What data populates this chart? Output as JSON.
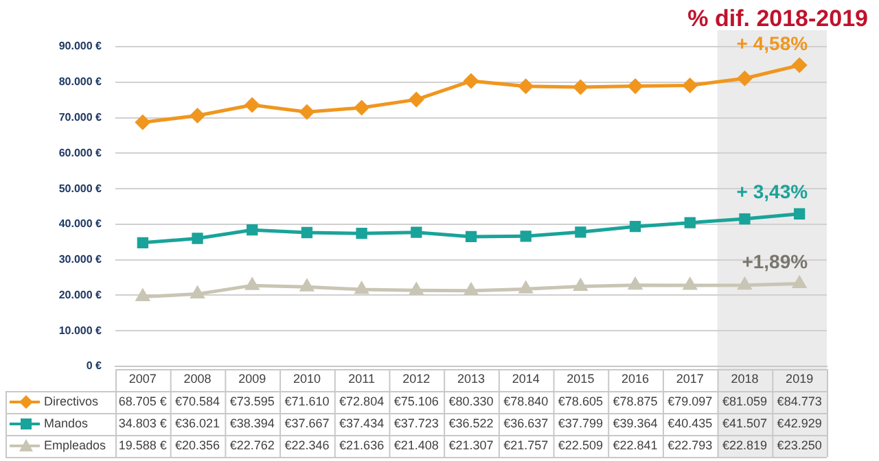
{
  "chart_data": {
    "type": "line",
    "title": "% dif. 2018-2019",
    "categories": [
      "2007",
      "2008",
      "2009",
      "2010",
      "2011",
      "2012",
      "2013",
      "2014",
      "2015",
      "2016",
      "2017",
      "2018",
      "2019"
    ],
    "series": [
      {
        "name": "Directivos",
        "color": "#f0961e",
        "marker": "diamond",
        "values": [
          68705,
          70584,
          73595,
          71610,
          72804,
          75106,
          80330,
          78840,
          78605,
          78875,
          79097,
          81059,
          84773
        ],
        "value_labels": [
          "68.705 €",
          "€70.584",
          "€73.595",
          "€71.610",
          "€72.804",
          "€75.106",
          "€80.330",
          "€78.840",
          "€78.605",
          "€78.875",
          "€79.097",
          "€81.059",
          "€84.773"
        ]
      },
      {
        "name": "Mandos",
        "color": "#1aa39a",
        "marker": "square",
        "values": [
          34803,
          36021,
          38394,
          37667,
          37434,
          37723,
          36522,
          36637,
          37799,
          39364,
          40435,
          41507,
          42929
        ],
        "value_labels": [
          "34.803 €",
          "€36.021",
          "€38.394",
          "€37.667",
          "€37.434",
          "€37.723",
          "€36.522",
          "€36.637",
          "€37.799",
          "€39.364",
          "€40.435",
          "€41.507",
          "€42.929"
        ]
      },
      {
        "name": "Empleados",
        "color": "#c9c5b5",
        "marker": "triangle",
        "values": [
          19588,
          20356,
          22762,
          22346,
          21636,
          21408,
          21307,
          21757,
          22509,
          22841,
          22793,
          22819,
          23250
        ],
        "value_labels": [
          "19.588 €",
          "€20.356",
          "€22.762",
          "€22.346",
          "€21.636",
          "€21.408",
          "€21.307",
          "€21.757",
          "€22.509",
          "€22.841",
          "€22.793",
          "€22.819",
          "€23.250"
        ]
      }
    ],
    "ylim": [
      0,
      90000
    ],
    "yticks": [
      {
        "value": 0,
        "label": "0 €"
      },
      {
        "value": 10000,
        "label": "10.000 €"
      },
      {
        "value": 20000,
        "label": "20.000 €"
      },
      {
        "value": 30000,
        "label": "30.000 €"
      },
      {
        "value": 40000,
        "label": "40.000 €"
      },
      {
        "value": 50000,
        "label": "50.000 €"
      },
      {
        "value": 60000,
        "label": "60.000 €"
      },
      {
        "value": 70000,
        "label": "70.000 €"
      },
      {
        "value": 80000,
        "label": "80.000 €"
      },
      {
        "value": 90000,
        "label": "90.000 €"
      }
    ],
    "grid": "y",
    "legend": "bottom",
    "line_style": "solid",
    "bands": [
      {
        "axis": "x",
        "from": "2018",
        "to": "2019",
        "color": "#ebebeb"
      }
    ],
    "annotations": [
      {
        "text": "+ 4,58%",
        "x": "2019",
        "y": 84773
      },
      {
        "text": "+ 3,43%",
        "x": "2019",
        "y": 42929
      },
      {
        "text": "+1,89%",
        "x": "2019",
        "y": 23250
      }
    ]
  }
}
